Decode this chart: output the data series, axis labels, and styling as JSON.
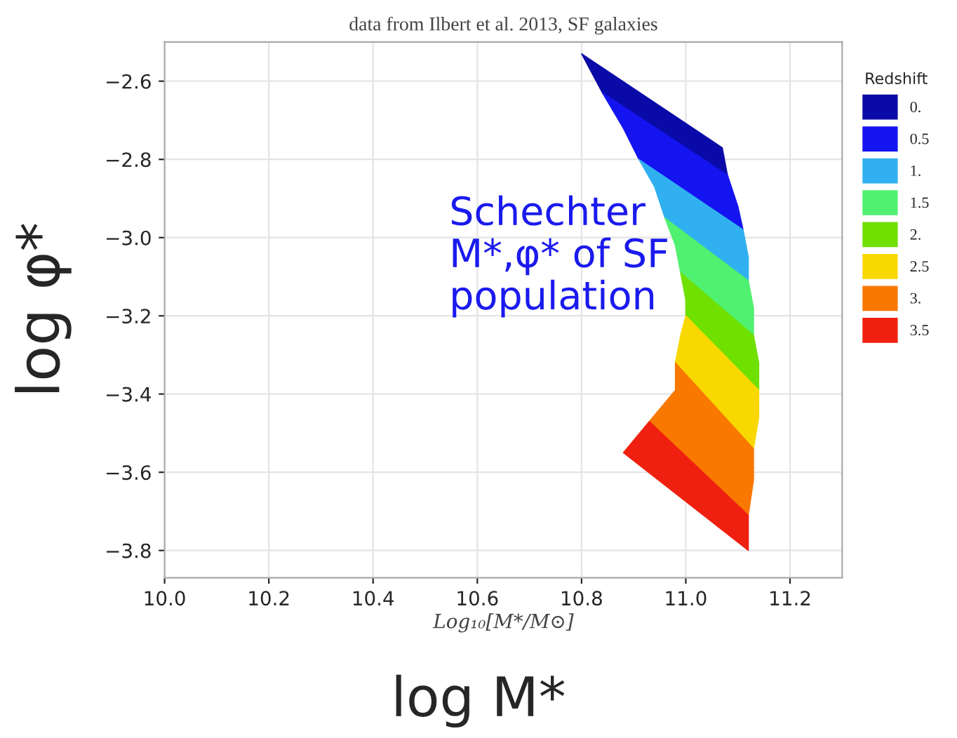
{
  "chart_data": {
    "type": "area",
    "title": "data from Ilbert et al. 2013, SF galaxies",
    "xlabel": "Log₁₀[M*/M⊙]",
    "ylabel": "log φ*",
    "legend_title": "Redshift",
    "annotations": [
      "Schechter M*,φ* of SF population",
      "log M*"
    ],
    "xlim": [
      10.0,
      11.3
    ],
    "ylim": [
      -3.87,
      -2.5
    ],
    "xticks": [
      {
        "value": 10.0,
        "label": "10.0"
      },
      {
        "value": 10.2,
        "label": "10.2"
      },
      {
        "value": 10.4,
        "label": "10.4"
      },
      {
        "value": 10.6,
        "label": "10.6"
      },
      {
        "value": 10.8,
        "label": "10.8"
      },
      {
        "value": 11.0,
        "label": "11.0"
      },
      {
        "value": 11.2,
        "label": "11.2"
      }
    ],
    "yticks": [
      {
        "value": -3.8,
        "label": "−3.8"
      },
      {
        "value": -3.6,
        "label": "−3.6"
      },
      {
        "value": -3.4,
        "label": "−3.4"
      },
      {
        "value": -3.2,
        "label": "−3.2"
      },
      {
        "value": -3.0,
        "label": "−3.0"
      },
      {
        "value": -2.8,
        "label": "−2.8"
      },
      {
        "value": -2.6,
        "label": "−2.6"
      }
    ],
    "grid": true,
    "legend": "right",
    "series": [
      {
        "name": "0.",
        "color": "#0a0aa8",
        "x": [
          10.8,
          10.84,
          11.08,
          11.07
        ],
        "values": [
          -2.53,
          -2.63,
          -2.84,
          -2.77
        ]
      },
      {
        "name": "0.5",
        "color": "#1414f0",
        "x": [
          10.84,
          10.88,
          10.91,
          11.11,
          11.1,
          11.08
        ],
        "values": [
          -2.63,
          -2.72,
          -2.8,
          -2.98,
          -2.92,
          -2.84
        ]
      },
      {
        "name": "1.",
        "color": "#30b0f0",
        "x": [
          10.91,
          10.94,
          10.96,
          11.12,
          11.12,
          11.11
        ],
        "values": [
          -2.8,
          -2.87,
          -2.95,
          -3.11,
          -3.05,
          -2.98
        ]
      },
      {
        "name": "1.5",
        "color": "#50f070",
        "x": [
          10.96,
          10.98,
          10.99,
          11.13,
          11.13,
          11.12
        ],
        "values": [
          -2.95,
          -3.02,
          -3.09,
          -3.25,
          -3.18,
          -3.11
        ]
      },
      {
        "name": "2.",
        "color": "#70e000",
        "x": [
          10.99,
          11.0,
          11.0,
          11.14,
          11.14,
          11.13
        ],
        "values": [
          -3.09,
          -3.16,
          -3.2,
          -3.39,
          -3.32,
          -3.25
        ]
      },
      {
        "name": "2.5",
        "color": "#f8d800",
        "x": [
          11.0,
          10.99,
          10.98,
          11.13,
          11.14,
          11.14
        ],
        "values": [
          -3.2,
          -3.25,
          -3.32,
          -3.54,
          -3.46,
          -3.39
        ]
      },
      {
        "name": "3.",
        "color": "#f87800",
        "x": [
          10.98,
          10.98,
          10.93,
          11.12,
          11.13,
          11.13
        ],
        "values": [
          -3.32,
          -3.39,
          -3.47,
          -3.71,
          -3.62,
          -3.54
        ]
      },
      {
        "name": "3.5",
        "color": "#f02010",
        "x": [
          10.93,
          10.88,
          11.12,
          11.12
        ],
        "values": [
          -3.47,
          -3.55,
          -3.8,
          -3.71
        ]
      }
    ]
  }
}
